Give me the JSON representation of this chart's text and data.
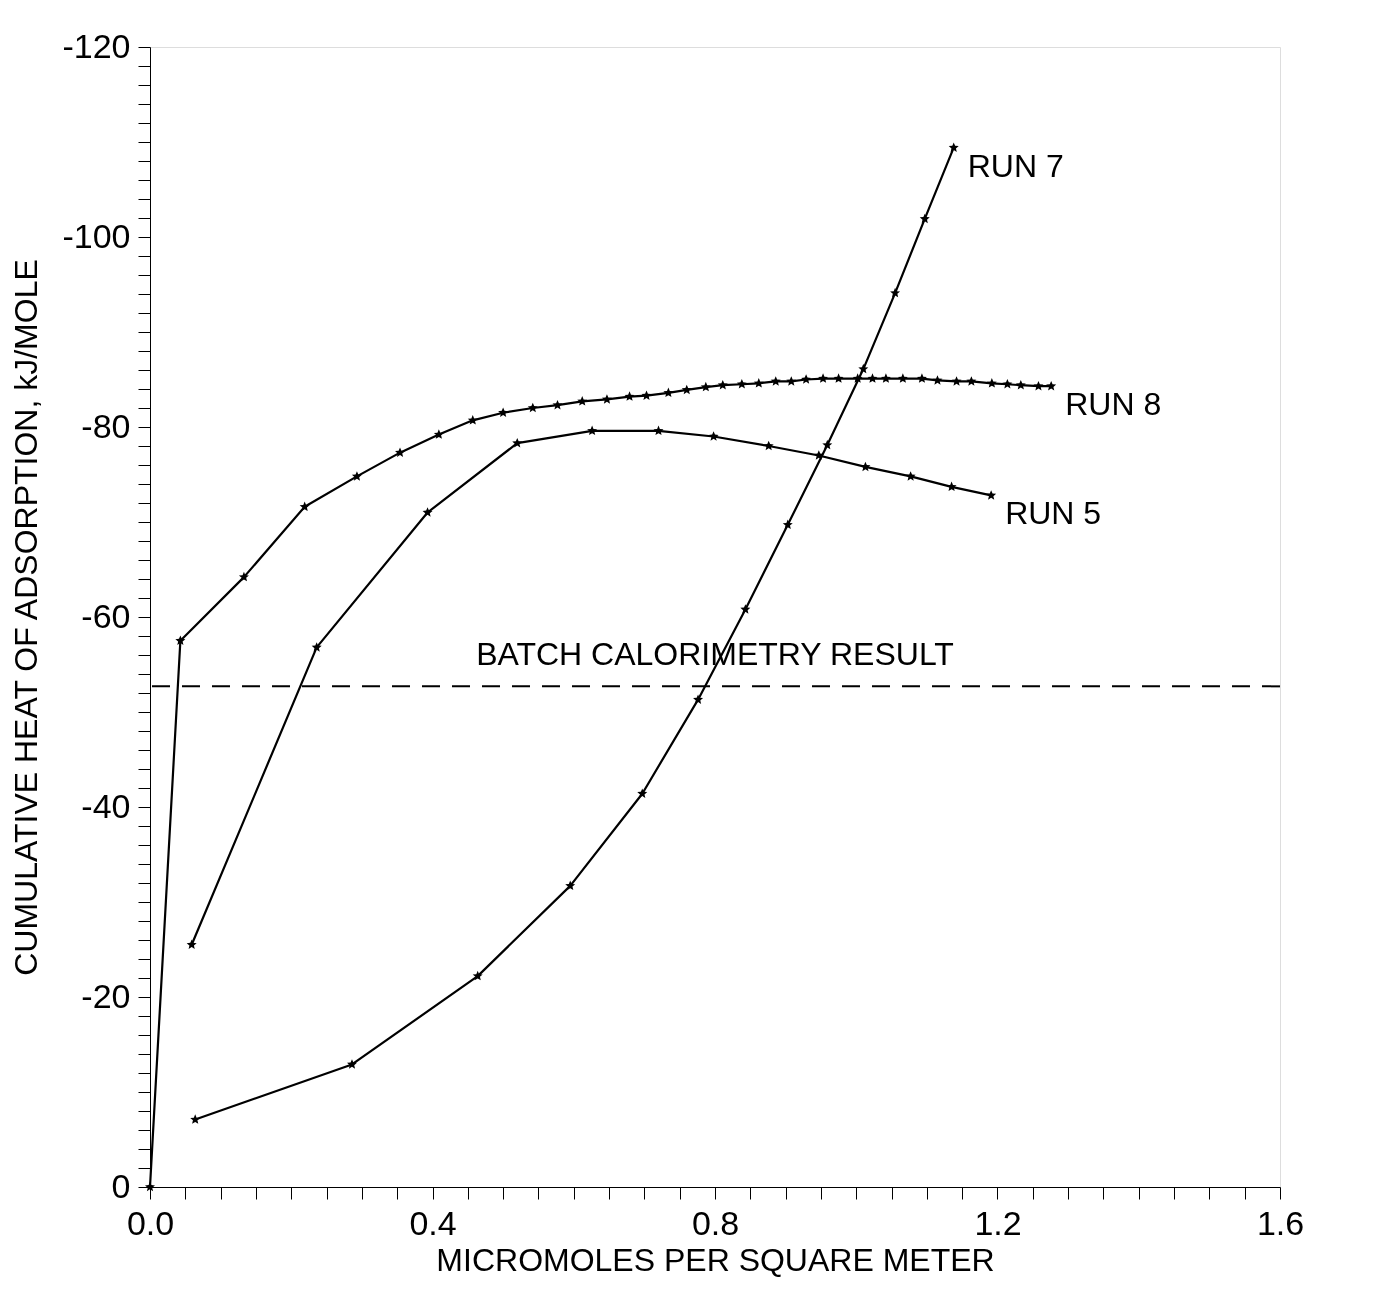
{
  "chart_data": {
    "type": "line",
    "xlabel": "MICROMOLES PER SQUARE METER",
    "ylabel": "CUMULATIVE HEAT OF ADSORPTION, kJ/MOLE",
    "xlim": [
      0,
      1.6
    ],
    "ylim": [
      0,
      -120
    ],
    "xticks": [
      {
        "value": 0,
        "label": "0.0"
      },
      {
        "value": 0.05,
        "label": null
      },
      {
        "value": 0.1,
        "label": null
      },
      {
        "value": 0.15,
        "label": null
      },
      {
        "value": 0.2,
        "label": null
      },
      {
        "value": 0.25,
        "label": null
      },
      {
        "value": 0.3,
        "label": null
      },
      {
        "value": 0.35,
        "label": null
      },
      {
        "value": 0.4,
        "label": "0.4"
      },
      {
        "value": 0.45,
        "label": null
      },
      {
        "value": 0.5,
        "label": null
      },
      {
        "value": 0.55,
        "label": null
      },
      {
        "value": 0.6,
        "label": null
      },
      {
        "value": 0.65,
        "label": null
      },
      {
        "value": 0.7,
        "label": null
      },
      {
        "value": 0.75,
        "label": null
      },
      {
        "value": 0.8,
        "label": "0.8"
      },
      {
        "value": 0.85,
        "label": null
      },
      {
        "value": 0.9,
        "label": null
      },
      {
        "value": 0.95,
        "label": null
      },
      {
        "value": 1.0,
        "label": null
      },
      {
        "value": 1.05,
        "label": null
      },
      {
        "value": 1.1,
        "label": null
      },
      {
        "value": 1.15,
        "label": null
      },
      {
        "value": 1.2,
        "label": "1.2"
      },
      {
        "value": 1.25,
        "label": null
      },
      {
        "value": 1.3,
        "label": null
      },
      {
        "value": 1.35,
        "label": null
      },
      {
        "value": 1.4,
        "label": null
      },
      {
        "value": 1.45,
        "label": null
      },
      {
        "value": 1.5,
        "label": null
      },
      {
        "value": 1.55,
        "label": null
      },
      {
        "value": 1.6,
        "label": "1.6"
      }
    ],
    "yticks": [
      0,
      {
        "value": -2,
        "label": null
      },
      {
        "value": -4,
        "label": null
      },
      {
        "value": -6,
        "label": null
      },
      {
        "value": -8,
        "label": null
      },
      {
        "value": -10,
        "label": null
      },
      {
        "value": -12,
        "label": null
      },
      {
        "value": -14,
        "label": null
      },
      {
        "value": -16,
        "label": null
      },
      {
        "value": -18,
        "label": null
      },
      -20,
      {
        "value": -22,
        "label": null
      },
      {
        "value": -24,
        "label": null
      },
      {
        "value": -26,
        "label": null
      },
      {
        "value": -28,
        "label": null
      },
      {
        "value": -30,
        "label": null
      },
      {
        "value": -32,
        "label": null
      },
      {
        "value": -34,
        "label": null
      },
      {
        "value": -36,
        "label": null
      },
      {
        "value": -38,
        "label": null
      },
      -40,
      {
        "value": -42,
        "label": null
      },
      {
        "value": -44,
        "label": null
      },
      {
        "value": -46,
        "label": null
      },
      {
        "value": -48,
        "label": null
      },
      {
        "value": -50,
        "label": null
      },
      {
        "value": -52,
        "label": null
      },
      {
        "value": -54,
        "label": null
      },
      {
        "value": -56,
        "label": null
      },
      {
        "value": -58,
        "label": null
      },
      -60,
      {
        "value": -62,
        "label": null
      },
      {
        "value": -64,
        "label": null
      },
      {
        "value": -66,
        "label": null
      },
      {
        "value": -68,
        "label": null
      },
      {
        "value": -70,
        "label": null
      },
      {
        "value": -72,
        "label": null
      },
      {
        "value": -74,
        "label": null
      },
      {
        "value": -76,
        "label": null
      },
      {
        "value": -78,
        "label": null
      },
      -80,
      {
        "value": -82,
        "label": null
      },
      {
        "value": -84,
        "label": null
      },
      {
        "value": -86,
        "label": null
      },
      {
        "value": -88,
        "label": null
      },
      {
        "value": -90,
        "label": null
      },
      {
        "value": -92,
        "label": null
      },
      {
        "value": -94,
        "label": null
      },
      {
        "value": -96,
        "label": null
      },
      {
        "value": -98,
        "label": null
      },
      -100,
      {
        "value": -102,
        "label": null
      },
      {
        "value": -104,
        "label": null
      },
      {
        "value": -106,
        "label": null
      },
      {
        "value": -108,
        "label": null
      },
      {
        "value": -110,
        "label": null
      },
      {
        "value": -112,
        "label": null
      },
      {
        "value": -114,
        "label": null
      },
      {
        "value": -116,
        "label": null
      },
      {
        "value": -118,
        "label": null
      },
      -120
    ],
    "grid": false,
    "legend": false,
    "marker": "star",
    "line_style": "solid",
    "ref_lines": [
      {
        "axis": "y",
        "value": -52.7,
        "label": "BATCH CALORIMETRY RESULT",
        "line_style": "dashed",
        "color": "#000000"
      }
    ],
    "series": [
      {
        "name": "RUN 7",
        "color": "#000000",
        "x": [
          0.064,
          0.286,
          0.464,
          0.595,
          0.697,
          0.776,
          0.843,
          0.903,
          0.959,
          1.01,
          1.055,
          1.097,
          1.138
        ],
        "values": [
          -7.1,
          -12.9,
          -22.2,
          -31.7,
          -41.4,
          -51.3,
          -60.8,
          -69.7,
          -78.1,
          -86.1,
          -94.1,
          -101.9,
          -109.4
        ]
      },
      {
        "name": "RUN 8",
        "color": "#000000",
        "x": [
          0,
          0.043,
          0.133,
          0.219,
          0.293,
          0.354,
          0.409,
          0.457,
          0.5,
          0.542,
          0.577,
          0.612,
          0.647,
          0.679,
          0.703,
          0.734,
          0.76,
          0.787,
          0.811,
          0.838,
          0.862,
          0.886,
          0.908,
          0.929,
          0.953,
          0.975,
          1.002,
          1.023,
          1.042,
          1.066,
          1.093,
          1.115,
          1.142,
          1.163,
          1.192,
          1.214,
          1.233,
          1.258,
          1.276
        ],
        "values": [
          0,
          -57.5,
          -64.2,
          -71.6,
          -74.8,
          -77.3,
          -79.2,
          -80.7,
          -81.5,
          -82.0,
          -82.3,
          -82.7,
          -82.9,
          -83.2,
          -83.3,
          -83.6,
          -83.9,
          -84.2,
          -84.4,
          -84.5,
          -84.6,
          -84.8,
          -84.8,
          -85.0,
          -85.1,
          -85.1,
          -85.1,
          -85.1,
          -85.1,
          -85.1,
          -85.1,
          -84.9,
          -84.8,
          -84.8,
          -84.6,
          -84.5,
          -84.4,
          -84.3,
          -84.3
        ]
      },
      {
        "name": "RUN 5",
        "color": "#000000",
        "x": [
          0.059,
          0.236,
          0.393,
          0.52,
          0.626,
          0.72,
          0.798,
          0.876,
          0.947,
          1.013,
          1.077,
          1.135,
          1.191
        ],
        "values": [
          -25.5,
          -56.8,
          -71.0,
          -78.3,
          -79.6,
          -79.6,
          -79.0,
          -78.0,
          -77.0,
          -75.8,
          -74.8,
          -73.7,
          -72.8
        ]
      }
    ]
  }
}
